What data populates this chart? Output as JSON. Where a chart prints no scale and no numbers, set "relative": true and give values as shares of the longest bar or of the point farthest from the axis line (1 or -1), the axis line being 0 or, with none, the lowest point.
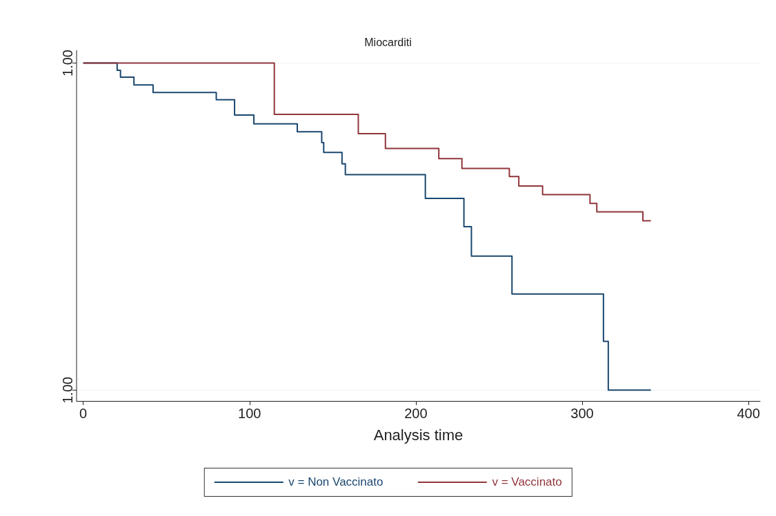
{
  "chart_data": {
    "type": "step",
    "title": "Miocarditi",
    "xlabel": "Analysis time",
    "xlim": [
      -4,
      407
    ],
    "xticks": [
      0,
      100,
      200,
      300,
      400
    ],
    "relative": true,
    "grid": "y",
    "annotations": [
      "1.00",
      "1.00"
    ],
    "legend": "bottom",
    "series": [
      {
        "name": "v = Non Vaccinato",
        "color": "#1a476f",
        "x": [
          0,
          20.4,
          22.4,
          30.5,
          42,
          80,
          91,
          102.6,
          128.7,
          143.4,
          144.6,
          155.6,
          157.6,
          205.7,
          228.9,
          233.4,
          257.8,
          312.8,
          315.7,
          341.3
        ],
        "values": [
          1,
          0.978,
          0.957,
          0.933,
          0.91,
          0.888,
          0.841,
          0.814,
          0.79,
          0.757,
          0.727,
          0.692,
          0.659,
          0.586,
          0.5,
          0.41,
          0.294,
          0.149,
          0,
          0
        ]
      },
      {
        "name": "v = Vaccinato",
        "color": "#90353b",
        "x": [
          0,
          114.9,
          165.4,
          181.7,
          213.8,
          227.7,
          256.2,
          261.9,
          276.2,
          304.7,
          308.8,
          336.5,
          341.3
        ],
        "values": [
          1,
          0.843,
          0.784,
          0.739,
          0.708,
          0.678,
          0.653,
          0.624,
          0.598,
          0.571,
          0.545,
          0.518,
          0.518
        ]
      }
    ]
  }
}
